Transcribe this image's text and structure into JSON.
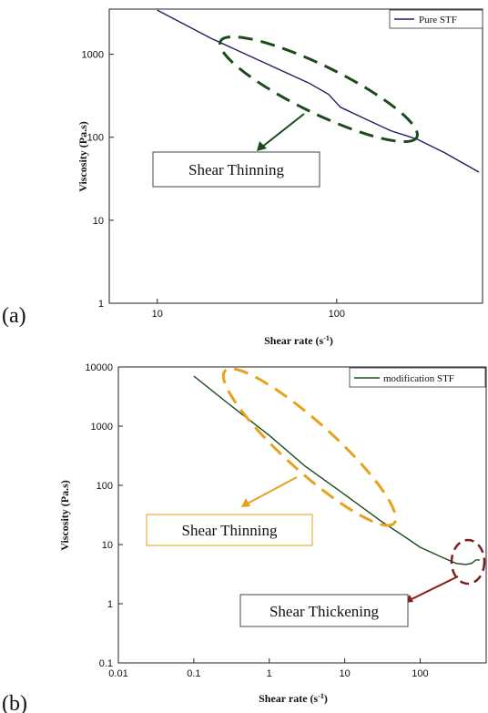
{
  "colors": {
    "pure": "#1f1f5c",
    "modified": "#1e4a1e",
    "ellipse_a": "#1d4a1d",
    "ellipse_b": "#e6a21a",
    "ellipse_b2": "#7a1f1f",
    "box_b": "#e6a21a",
    "arrow_a": "#1d4a1d",
    "arrow_b": "#e6a21a",
    "arrow_b2": "#8b1a1a"
  },
  "chart_data": [
    {
      "panel_label": "(a)",
      "type": "line",
      "xlabel": "Shear rate (s",
      "xlabel_sup": "-1",
      "xlabel_end": ")",
      "ylabel": "Viscosity (Pa.s)",
      "scale": "log-log",
      "xlim": [
        5.4,
        650
      ],
      "ylim": [
        1,
        3500
      ],
      "x_ticks": [
        10,
        100
      ],
      "x_tick_labels": [
        "10",
        "100"
      ],
      "y_ticks": [
        1,
        10,
        100,
        1000
      ],
      "y_tick_labels": [
        "1",
        "10",
        "100",
        "1000"
      ],
      "grid": false,
      "legend_position": "top-right",
      "series": [
        {
          "name": "Pure STF",
          "x": [
            10,
            20,
            40,
            70,
            90,
            105,
            150,
            200,
            280,
            400,
            620
          ],
          "y": [
            3400,
            1550,
            780,
            450,
            330,
            230,
            160,
            120,
            95,
            65,
            38
          ]
        }
      ],
      "annotation": {
        "text": "Shear Thinning",
        "x_range": [
          20,
          280
        ]
      }
    },
    {
      "panel_label": "(b)",
      "type": "line",
      "xlabel": "Shear rate (s",
      "xlabel_sup": "-1",
      "xlabel_end": ")",
      "ylabel": "Viscosity (Pa.s)",
      "scale": "log-log",
      "xlim": [
        0.01,
        750
      ],
      "ylim": [
        0.1,
        10000
      ],
      "x_ticks": [
        0.01,
        0.1,
        1,
        10,
        100
      ],
      "x_tick_labels": [
        "0.01",
        "0.1",
        "1",
        "10",
        "100"
      ],
      "y_ticks": [
        0.1,
        1,
        10,
        100,
        1000,
        10000
      ],
      "y_tick_labels": [
        "0.1",
        "1",
        "10",
        "100",
        "1000",
        "10000"
      ],
      "grid": false,
      "legend_position": "top-right",
      "series": [
        {
          "name": "modification STF",
          "x": [
            0.1,
            0.3,
            1,
            3,
            10,
            30,
            60,
            100,
            200,
            300,
            400,
            480,
            550,
            620
          ],
          "y": [
            7000,
            2300,
            700,
            210,
            70,
            25,
            14,
            9,
            6,
            4.8,
            4.6,
            4.8,
            5.5,
            5.5
          ]
        }
      ],
      "annotations": [
        {
          "text": "Shear Thinning",
          "x_range": [
            0.2,
            40
          ]
        },
        {
          "text": "Shear Thickening",
          "x_range": [
            300,
            650
          ]
        }
      ]
    }
  ]
}
